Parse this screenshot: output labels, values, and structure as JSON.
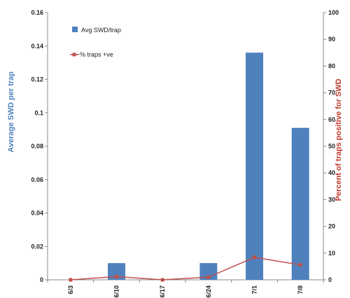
{
  "chart_data": {
    "type": "bar",
    "categories": [
      "6/3",
      "6/10",
      "6/17",
      "6/24",
      "7/1",
      "7/8"
    ],
    "series": [
      {
        "name": "Avg SWD/trap",
        "type": "bar",
        "axis": "left",
        "color": "#4f81bd",
        "values": [
          0,
          0.01,
          0,
          0.01,
          0.136,
          0.091
        ]
      },
      {
        "name": "% traps +ve",
        "type": "line",
        "axis": "right",
        "color": "#c0504d",
        "values": [
          0,
          1.2,
          0,
          1,
          8.4,
          5.6
        ]
      }
    ],
    "ylabel": "Average SWD per trap",
    "ylabel_right": "Percent of traps positive for SWD",
    "ylim": [
      0,
      0.16
    ],
    "ylim_right": [
      0,
      100
    ],
    "yticks": [
      "0",
      "0.02",
      "0.04",
      "0.06",
      "0.08",
      "0.1",
      "0.12",
      "0.14",
      "0.16"
    ],
    "yticks_right": [
      "0",
      "10",
      "20",
      "30",
      "40",
      "50",
      "60",
      "70",
      "80",
      "90",
      "100"
    ],
    "legend_placement": "top-left",
    "grid": false
  }
}
